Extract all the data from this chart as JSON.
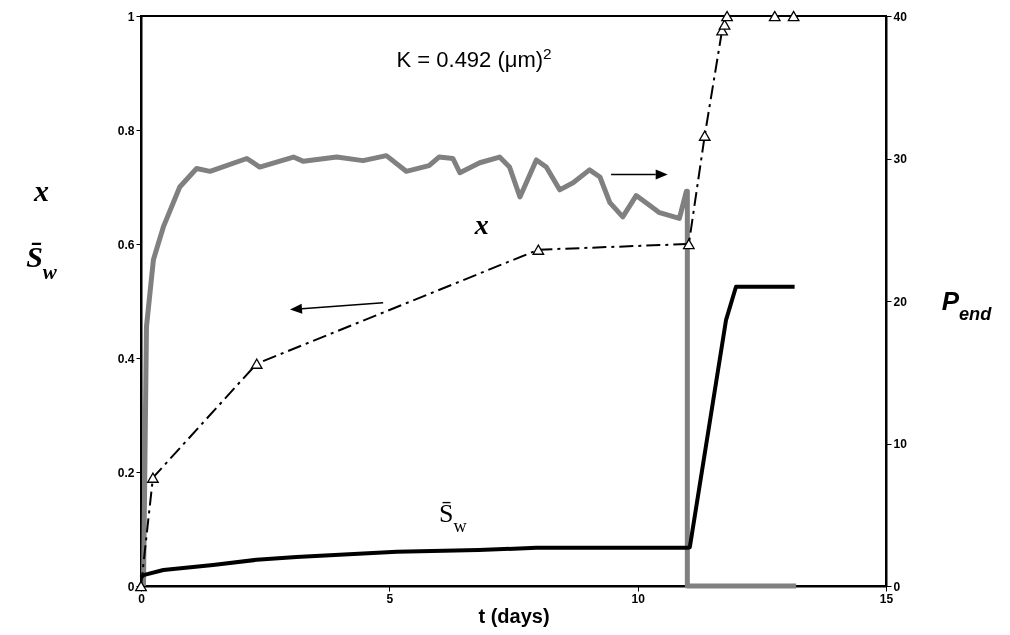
{
  "chart_data": {
    "type": "line",
    "xlabel": "t (days)",
    "ylabel": "x\nS̄$_{w}$",
    "y2label": "P$_{end}$",
    "annotations": [
      "K = 0.492 (μm)$^{2}$"
    ],
    "xlim": [
      0,
      15
    ],
    "xticks": [
      0,
      5,
      10,
      15
    ],
    "ylim": [
      0,
      1
    ],
    "yticks": [
      0,
      0.2,
      0.4,
      0.6,
      0.8,
      1
    ],
    "y2lim": [
      0,
      40
    ],
    "y2ticks": [
      0,
      10,
      20,
      30,
      40
    ],
    "grid": false,
    "series": [
      {
        "name": "x",
        "color": "#000000",
        "marker": "triangle",
        "line_style": "dashed",
        "x": [
          0,
          0.24,
          2.33,
          8.0,
          11.03,
          11.35,
          11.7,
          11.75,
          11.8,
          12.76,
          13.14
        ],
        "values": [
          0,
          0.19,
          0.39,
          0.59,
          0.6,
          0.79,
          0.975,
          0.985,
          1,
          1,
          1
        ]
      },
      {
        "name": "S̄$_{w}$",
        "color": "#000000",
        "marker": "none",
        "line_style": "solid",
        "x": [
          0,
          0.05,
          0.45,
          1.45,
          2.33,
          3.13,
          5.15,
          6.8,
          7.96,
          11.0,
          11.05,
          11.78,
          11.98,
          13.16
        ],
        "values": [
          0.015,
          0.019,
          0.028,
          0.037,
          0.046,
          0.051,
          0.06,
          0.063,
          0.067,
          0.067,
          0.068,
          0.467,
          0.525,
          0.525
        ]
      },
      {
        "color": "#808080",
        "axis": "y2",
        "marker": "none",
        "line_style": "solid",
        "x": [
          0.05,
          0.11,
          0.25,
          0.45,
          0.78,
          1.12,
          1.39,
          2.13,
          2.39,
          3.07,
          3.27,
          3.94,
          4.47,
          4.94,
          5.34,
          5.8,
          6.0,
          6.28,
          6.42,
          6.82,
          7.22,
          7.42,
          7.63,
          7.96,
          8.16,
          8.43,
          8.7,
          9.03,
          9.24,
          9.44,
          9.7,
          9.97,
          10.17,
          10.44,
          10.84,
          10.98,
          11.0,
          11.0,
          13.19
        ],
        "values": [
          0,
          18.2,
          22.9,
          25.2,
          28.0,
          29.3,
          29.1,
          30.0,
          29.4,
          30.1,
          29.8,
          30.1,
          29.85,
          30.2,
          29.1,
          29.5,
          30.1,
          30.0,
          29.0,
          29.7,
          30.1,
          29.4,
          27.3,
          29.9,
          29.4,
          27.8,
          28.3,
          29.2,
          28.7,
          26.9,
          25.9,
          27.4,
          26.9,
          26.2,
          25.8,
          27.7,
          27.7,
          0,
          0
        ]
      }
    ]
  }
}
